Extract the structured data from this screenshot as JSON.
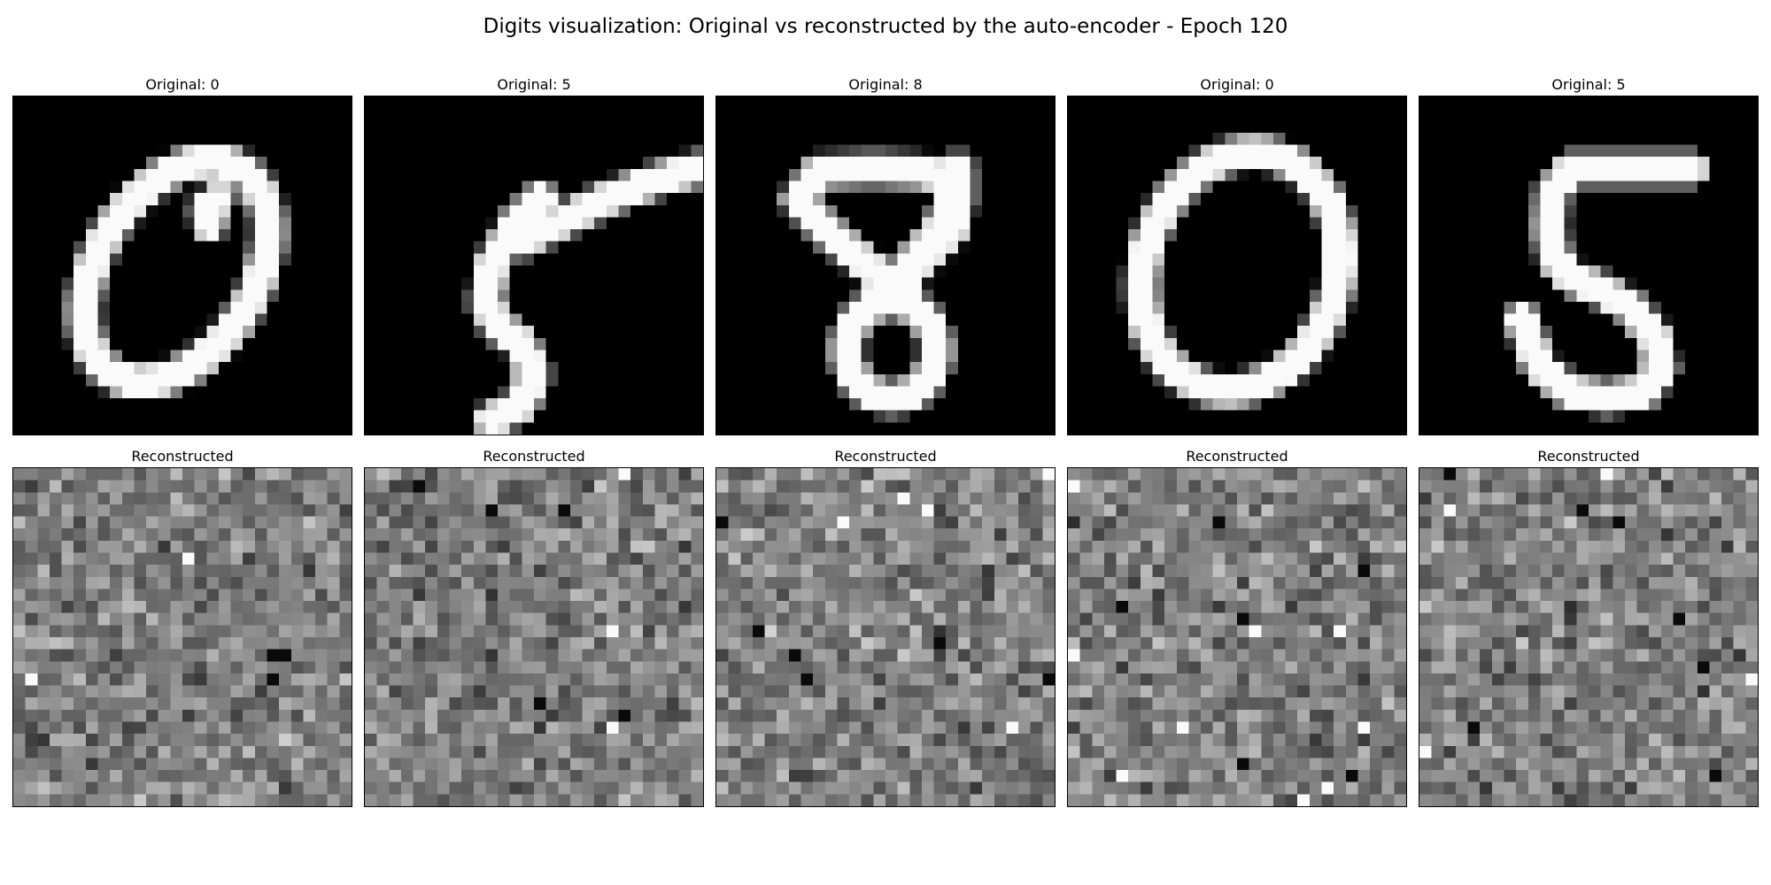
{
  "figure": {
    "title": "Digits visualization: Original vs reconstructed by the auto-encoder - Epoch 120"
  },
  "originals": [
    {
      "label": "Original: 0",
      "digit": "0"
    },
    {
      "label": "Original: 5",
      "digit": "5"
    },
    {
      "label": "Original: 8",
      "digit": "8"
    },
    {
      "label": "Original: 0",
      "digit": "0"
    },
    {
      "label": "Original: 5",
      "digit": "5"
    }
  ],
  "reconstructions": [
    {
      "label": "Reconstructed"
    },
    {
      "label": "Reconstructed"
    },
    {
      "label": "Reconstructed"
    },
    {
      "label": "Reconstructed"
    },
    {
      "label": "Reconstructed"
    }
  ],
  "image_grid": {
    "rows": 28,
    "cols": 28,
    "colormap": "gray"
  }
}
